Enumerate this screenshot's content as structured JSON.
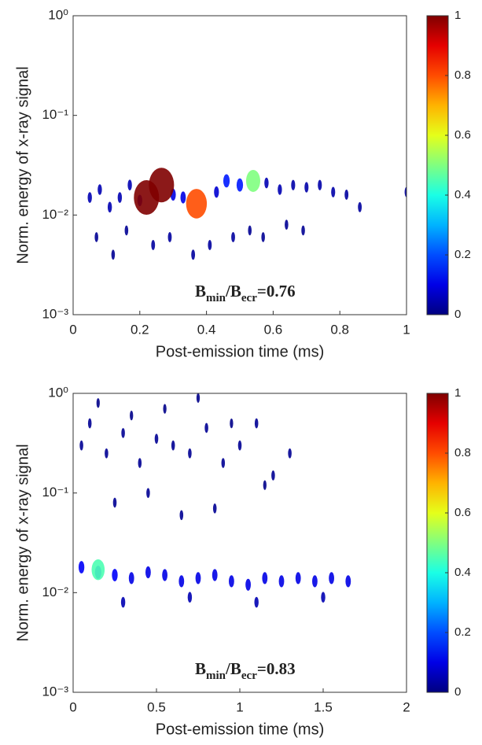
{
  "chart_data": [
    {
      "type": "density",
      "xlabel": "Post-emission time (ms)",
      "ylabel": "Norm. energy of x-ray signal",
      "annotation": [
        "B",
        "min",
        "/B",
        "ecr",
        "=0.76"
      ],
      "xlim": [
        0,
        1
      ],
      "xticks": [
        0,
        0.2,
        0.4,
        0.6,
        0.8,
        1
      ],
      "ylim": [
        0.001,
        1
      ],
      "ylog": true,
      "yticks": [
        {
          "value": 0.001,
          "label": "10⁻³"
        },
        {
          "value": 0.01,
          "label": "10⁻²"
        },
        {
          "value": 0.1,
          "label": "10⁻¹"
        },
        {
          "value": 1,
          "label": "10⁰"
        }
      ],
      "colormap": "jet",
      "clim": [
        0,
        1
      ],
      "cticks": [
        0,
        0.2,
        0.4,
        0.6,
        0.8,
        1
      ],
      "x": [
        0.05,
        0.08,
        0.11,
        0.14,
        0.17,
        0.2,
        0.3,
        0.33,
        0.43,
        0.46,
        0.5,
        0.58,
        0.62,
        0.66,
        0.7,
        0.74,
        0.78,
        0.82,
        0.86,
        1.0,
        0.07,
        0.12,
        0.16,
        0.24,
        0.29,
        0.36,
        0.41,
        0.48,
        0.53,
        0.57,
        0.64,
        0.69,
        0.54,
        0.37,
        0.22,
        0.265
      ],
      "y": [
        0.015,
        0.018,
        0.012,
        0.015,
        0.02,
        0.014,
        0.016,
        0.015,
        0.017,
        0.022,
        0.02,
        0.021,
        0.018,
        0.02,
        0.019,
        0.02,
        0.017,
        0.016,
        0.012,
        0.017,
        0.006,
        0.004,
        0.007,
        0.005,
        0.006,
        0.004,
        0.005,
        0.006,
        0.007,
        0.006,
        0.008,
        0.007,
        0.022,
        0.013,
        0.015,
        0.02
      ],
      "values": [
        0.05,
        0.05,
        0.05,
        0.05,
        0.05,
        0.08,
        0.1,
        0.1,
        0.08,
        0.15,
        0.15,
        0.05,
        0.05,
        0.04,
        0.04,
        0.04,
        0.04,
        0.03,
        0.03,
        0.03,
        0.02,
        0.02,
        0.02,
        0.03,
        0.03,
        0.03,
        0.03,
        0.03,
        0.02,
        0.02,
        0.02,
        0.02,
        0.5,
        0.8,
        1,
        1
      ]
    },
    {
      "type": "density",
      "xlabel": "Post-emission time (ms)",
      "ylabel": "Norm. energy of x-ray signal",
      "annotation": [
        "B",
        "min",
        "/B",
        "ecr",
        "=0.83"
      ],
      "xlim": [
        0,
        2
      ],
      "xticks": [
        0,
        0.5,
        1,
        1.5,
        2
      ],
      "ylim": [
        0.001,
        1
      ],
      "ylog": true,
      "yticks": [
        {
          "value": 0.001,
          "label": "10⁻³"
        },
        {
          "value": 0.01,
          "label": "10⁻²"
        },
        {
          "value": 0.1,
          "label": "10⁻¹"
        },
        {
          "value": 1,
          "label": "10⁰"
        }
      ],
      "colormap": "jet",
      "clim": [
        0,
        1
      ],
      "cticks": [
        0,
        0.2,
        0.4,
        0.6,
        0.8,
        1
      ],
      "x": [
        0.05,
        0.1,
        0.2,
        0.3,
        0.4,
        0.5,
        0.6,
        0.7,
        0.8,
        0.9,
        1.0,
        1.1,
        1.2,
        1.3,
        0.15,
        0.35,
        0.55,
        0.75,
        0.95,
        1.15,
        0.25,
        0.45,
        0.65,
        0.85,
        0.05,
        0.15,
        0.25,
        0.35,
        0.45,
        0.55,
        0.65,
        0.75,
        0.85,
        0.95,
        1.05,
        1.15,
        1.25,
        1.35,
        1.45,
        1.55,
        1.65,
        0.3,
        0.7,
        1.1,
        1.5,
        0.15
      ],
      "y": [
        0.3,
        0.5,
        0.25,
        0.4,
        0.2,
        0.35,
        0.3,
        0.25,
        0.45,
        0.2,
        0.3,
        0.5,
        0.15,
        0.25,
        0.8,
        0.6,
        0.7,
        0.9,
        0.5,
        0.12,
        0.08,
        0.1,
        0.06,
        0.07,
        0.018,
        0.016,
        0.015,
        0.014,
        0.016,
        0.015,
        0.013,
        0.014,
        0.015,
        0.013,
        0.012,
        0.014,
        0.013,
        0.014,
        0.013,
        0.014,
        0.013,
        0.008,
        0.009,
        0.008,
        0.009,
        0.017
      ],
      "values": [
        0.02,
        0.02,
        0.02,
        0.02,
        0.02,
        0.02,
        0.02,
        0.02,
        0.02,
        0.02,
        0.02,
        0.02,
        0.02,
        0.02,
        0.01,
        0.01,
        0.01,
        0.01,
        0.01,
        0.01,
        0.02,
        0.02,
        0.02,
        0.02,
        0.12,
        0.15,
        0.12,
        0.1,
        0.1,
        0.1,
        0.1,
        0.1,
        0.1,
        0.1,
        0.1,
        0.1,
        0.1,
        0.1,
        0.1,
        0.1,
        0.1,
        0.05,
        0.05,
        0.05,
        0.05,
        0.45
      ]
    }
  ]
}
